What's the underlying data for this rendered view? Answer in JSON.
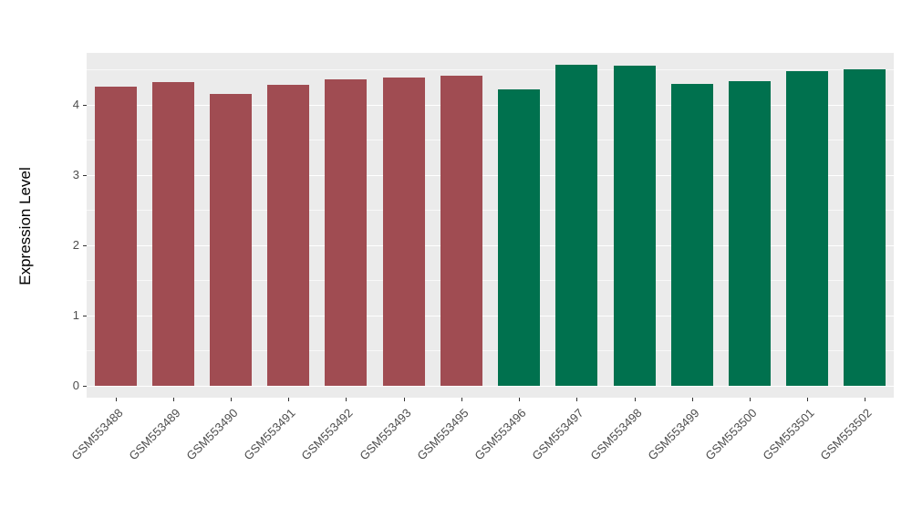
{
  "chart_data": {
    "type": "bar",
    "title": "",
    "xlabel": "",
    "ylabel": "Expression Level",
    "categories": [
      "GSM553488",
      "GSM553489",
      "GSM553490",
      "GSM553491",
      "GSM553492",
      "GSM553493",
      "GSM553495",
      "GSM553496",
      "GSM553497",
      "GSM553498",
      "GSM553499",
      "GSM553500",
      "GSM553501",
      "GSM553502"
    ],
    "values": [
      4.26,
      4.32,
      4.16,
      4.29,
      4.36,
      4.39,
      4.42,
      4.22,
      4.57,
      4.56,
      4.3,
      4.34,
      4.48,
      4.51
    ],
    "bar_colors": [
      "#A04C52",
      "#A04C52",
      "#A04C52",
      "#A04C52",
      "#A04C52",
      "#A04C52",
      "#A04C52",
      "#00714E",
      "#00714E",
      "#00714E",
      "#00714E",
      "#00714E",
      "#00714E",
      "#00714E"
    ],
    "group_colors": {
      "left_group": "#A04C52",
      "right_group": "#00714E"
    },
    "ylim": [
      0,
      4.74
    ],
    "yticks": [
      0,
      1,
      2,
      3,
      4
    ],
    "minor_ticks": [
      0.5,
      1.5,
      2.5,
      3.5,
      4.5
    ],
    "grid": "on",
    "legend": "none",
    "panel_background": "#EBEBEB",
    "grid_color": "#FFFFFF",
    "page_background": "#FFFFFF",
    "tick_text_color": "#4D4D4D"
  }
}
